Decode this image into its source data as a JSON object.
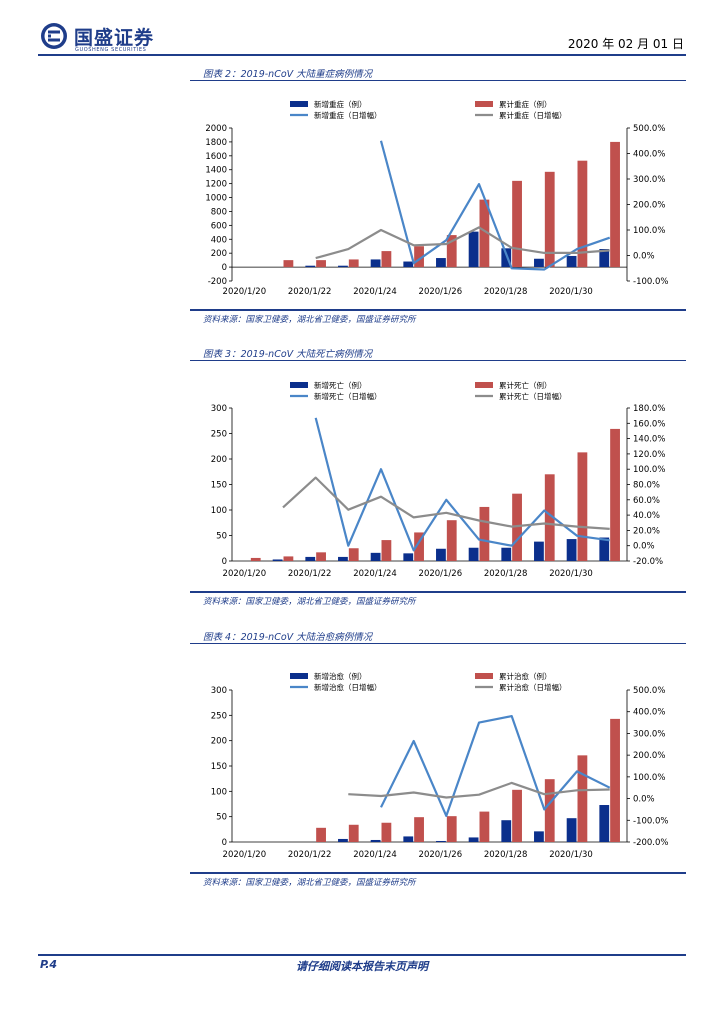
{
  "header": {
    "company_name": "国盛证券",
    "company_sub": "GUOSHENG SECURITIES",
    "date": "2020 年 02 月 01 日"
  },
  "footer": {
    "page": "P.4",
    "note": "请仔细阅读本报告末页声明"
  },
  "colors": {
    "brand": "#1f3d8a",
    "bar_new": "#0b2f8c",
    "bar_cum": "#c0504d",
    "line_new": "#4a86c8",
    "line_cum": "#8c8c8c"
  },
  "chart_data": [
    {
      "type": "bar",
      "title": "图表 2：2019-nCoV 大陆重症病例情况",
      "source": "资料来源：国家卫健委，湖北省卫健委，国盛证券研究所",
      "categories": [
        "2020/1/20",
        "2020/1/21",
        "2020/1/22",
        "2020/1/23",
        "2020/1/24",
        "2020/1/25",
        "2020/1/26",
        "2020/1/27",
        "2020/1/28",
        "2020/1/29",
        "2020/1/30",
        "2020/1/31"
      ],
      "x_tick_labels": [
        "2020/1/20",
        "2020/1/22",
        "2020/1/24",
        "2020/1/26",
        "2020/1/28",
        "2020/1/30"
      ],
      "legend": [
        "新增重症（例）",
        "累计重症（例）",
        "新增重症（日增幅）",
        "累计重症（日增幅）"
      ],
      "y_left": {
        "min": -200,
        "max": 2000,
        "ticks": [
          "2000",
          "1800",
          "1600",
          "1400",
          "1200",
          "1000",
          "800",
          "600",
          "400",
          "200",
          "0",
          "-200"
        ]
      },
      "y_right": {
        "min": -100,
        "max": 500,
        "ticks": [
          "500.0%",
          "400.0%",
          "300.0%",
          "200.0%",
          "100.0%",
          "0.0%",
          "-100.0%"
        ]
      },
      "series": [
        {
          "name": "新增重症（例）",
          "kind": "bar",
          "axis": "left",
          "values": [
            0,
            0,
            20,
            20,
            110,
            80,
            130,
            510,
            270,
            120,
            160,
            260
          ]
        },
        {
          "name": "累计重症（例）",
          "kind": "bar",
          "axis": "left",
          "values": [
            0,
            100,
            100,
            110,
            230,
            300,
            460,
            970,
            1240,
            1370,
            1530,
            1800
          ]
        },
        {
          "name": "新增重症（日增幅）",
          "kind": "line",
          "axis": "right",
          "values": [
            null,
            null,
            null,
            null,
            450,
            -30,
            60,
            280,
            -50,
            -55,
            25,
            70
          ]
        },
        {
          "name": "累计重症（日增幅）",
          "kind": "line",
          "axis": "right",
          "values": [
            null,
            null,
            -10,
            25,
            100,
            40,
            45,
            110,
            30,
            10,
            10,
            20
          ]
        }
      ]
    },
    {
      "type": "bar",
      "title": "图表 3：2019-nCoV 大陆死亡病例情况",
      "source": "资料来源：国家卫健委，湖北省卫健委，国盛证券研究所",
      "categories": [
        "2020/1/20",
        "2020/1/21",
        "2020/1/22",
        "2020/1/23",
        "2020/1/24",
        "2020/1/25",
        "2020/1/26",
        "2020/1/27",
        "2020/1/28",
        "2020/1/29",
        "2020/1/30",
        "2020/1/31"
      ],
      "x_tick_labels": [
        "2020/1/20",
        "2020/1/22",
        "2020/1/24",
        "2020/1/26",
        "2020/1/28",
        "2020/1/30"
      ],
      "legend": [
        "新增死亡（例）",
        "累计死亡（例）",
        "新增死亡（日增幅）",
        "累计死亡（日增幅）"
      ],
      "y_left": {
        "min": 0,
        "max": 300,
        "ticks": [
          "300",
          "250",
          "200",
          "150",
          "100",
          "50",
          "0"
        ]
      },
      "y_right": {
        "min": -20,
        "max": 180,
        "ticks": [
          "180.0%",
          "160.0%",
          "140.0%",
          "120.0%",
          "100.0%",
          "80.0%",
          "60.0%",
          "40.0%",
          "20.0%",
          "0.0%",
          "-20.0%"
        ]
      },
      "series": [
        {
          "name": "新增死亡（例）",
          "kind": "bar",
          "axis": "left",
          "values": [
            0,
            3,
            8,
            8,
            16,
            15,
            24,
            26,
            26,
            38,
            43,
            46
          ]
        },
        {
          "name": "累计死亡（例）",
          "kind": "bar",
          "axis": "left",
          "values": [
            6,
            9,
            17,
            25,
            41,
            56,
            80,
            106,
            132,
            170,
            213,
            259
          ]
        },
        {
          "name": "新增死亡（日增幅）",
          "kind": "line",
          "axis": "right",
          "values": [
            null,
            null,
            167,
            0,
            100,
            -6,
            60,
            8,
            0,
            46,
            13,
            7
          ]
        },
        {
          "name": "累计死亡（日增幅）",
          "kind": "line",
          "axis": "right",
          "values": [
            null,
            50,
            89,
            47,
            64,
            37,
            43,
            33,
            25,
            29,
            25,
            22
          ]
        }
      ]
    },
    {
      "type": "bar",
      "title": "图表 4：2019-nCoV 大陆治愈病例情况",
      "source": "资料来源：国家卫健委，湖北省卫健委，国盛证券研究所",
      "categories": [
        "2020/1/20",
        "2020/1/21",
        "2020/1/22",
        "2020/1/23",
        "2020/1/24",
        "2020/1/25",
        "2020/1/26",
        "2020/1/27",
        "2020/1/28",
        "2020/1/29",
        "2020/1/30",
        "2020/1/31"
      ],
      "x_tick_labels": [
        "2020/1/20",
        "2020/1/22",
        "2020/1/24",
        "2020/1/26",
        "2020/1/28",
        "2020/1/30"
      ],
      "legend": [
        "新增治愈（例）",
        "累计治愈（例）",
        "新增治愈（日增幅）",
        "累计治愈（日增幅）"
      ],
      "y_left": {
        "min": 0,
        "max": 300,
        "ticks": [
          "300",
          "250",
          "200",
          "150",
          "100",
          "50",
          "0"
        ]
      },
      "y_right": {
        "min": -200,
        "max": 500,
        "ticks": [
          "500.0%",
          "400.0%",
          "300.0%",
          "200.0%",
          "100.0%",
          "0.0%",
          "-100.0%",
          "-200.0%"
        ]
      },
      "series": [
        {
          "name": "新增治愈（例）",
          "kind": "bar",
          "axis": "left",
          "values": [
            0,
            0,
            0,
            6,
            4,
            11,
            2,
            9,
            43,
            21,
            47,
            73
          ]
        },
        {
          "name": "累计治愈（例）",
          "kind": "bar",
          "axis": "left",
          "values": [
            0,
            0,
            28,
            34,
            38,
            49,
            51,
            60,
            103,
            124,
            171,
            243
          ]
        },
        {
          "name": "新增治愈（日增幅）",
          "kind": "line",
          "axis": "right",
          "values": [
            null,
            null,
            null,
            null,
            -40,
            265,
            -80,
            350,
            380,
            -50,
            125,
            50
          ]
        },
        {
          "name": "累计治愈（日增幅）",
          "kind": "line",
          "axis": "right",
          "values": [
            null,
            null,
            null,
            20,
            12,
            28,
            5,
            18,
            72,
            20,
            38,
            42
          ]
        }
      ]
    }
  ]
}
